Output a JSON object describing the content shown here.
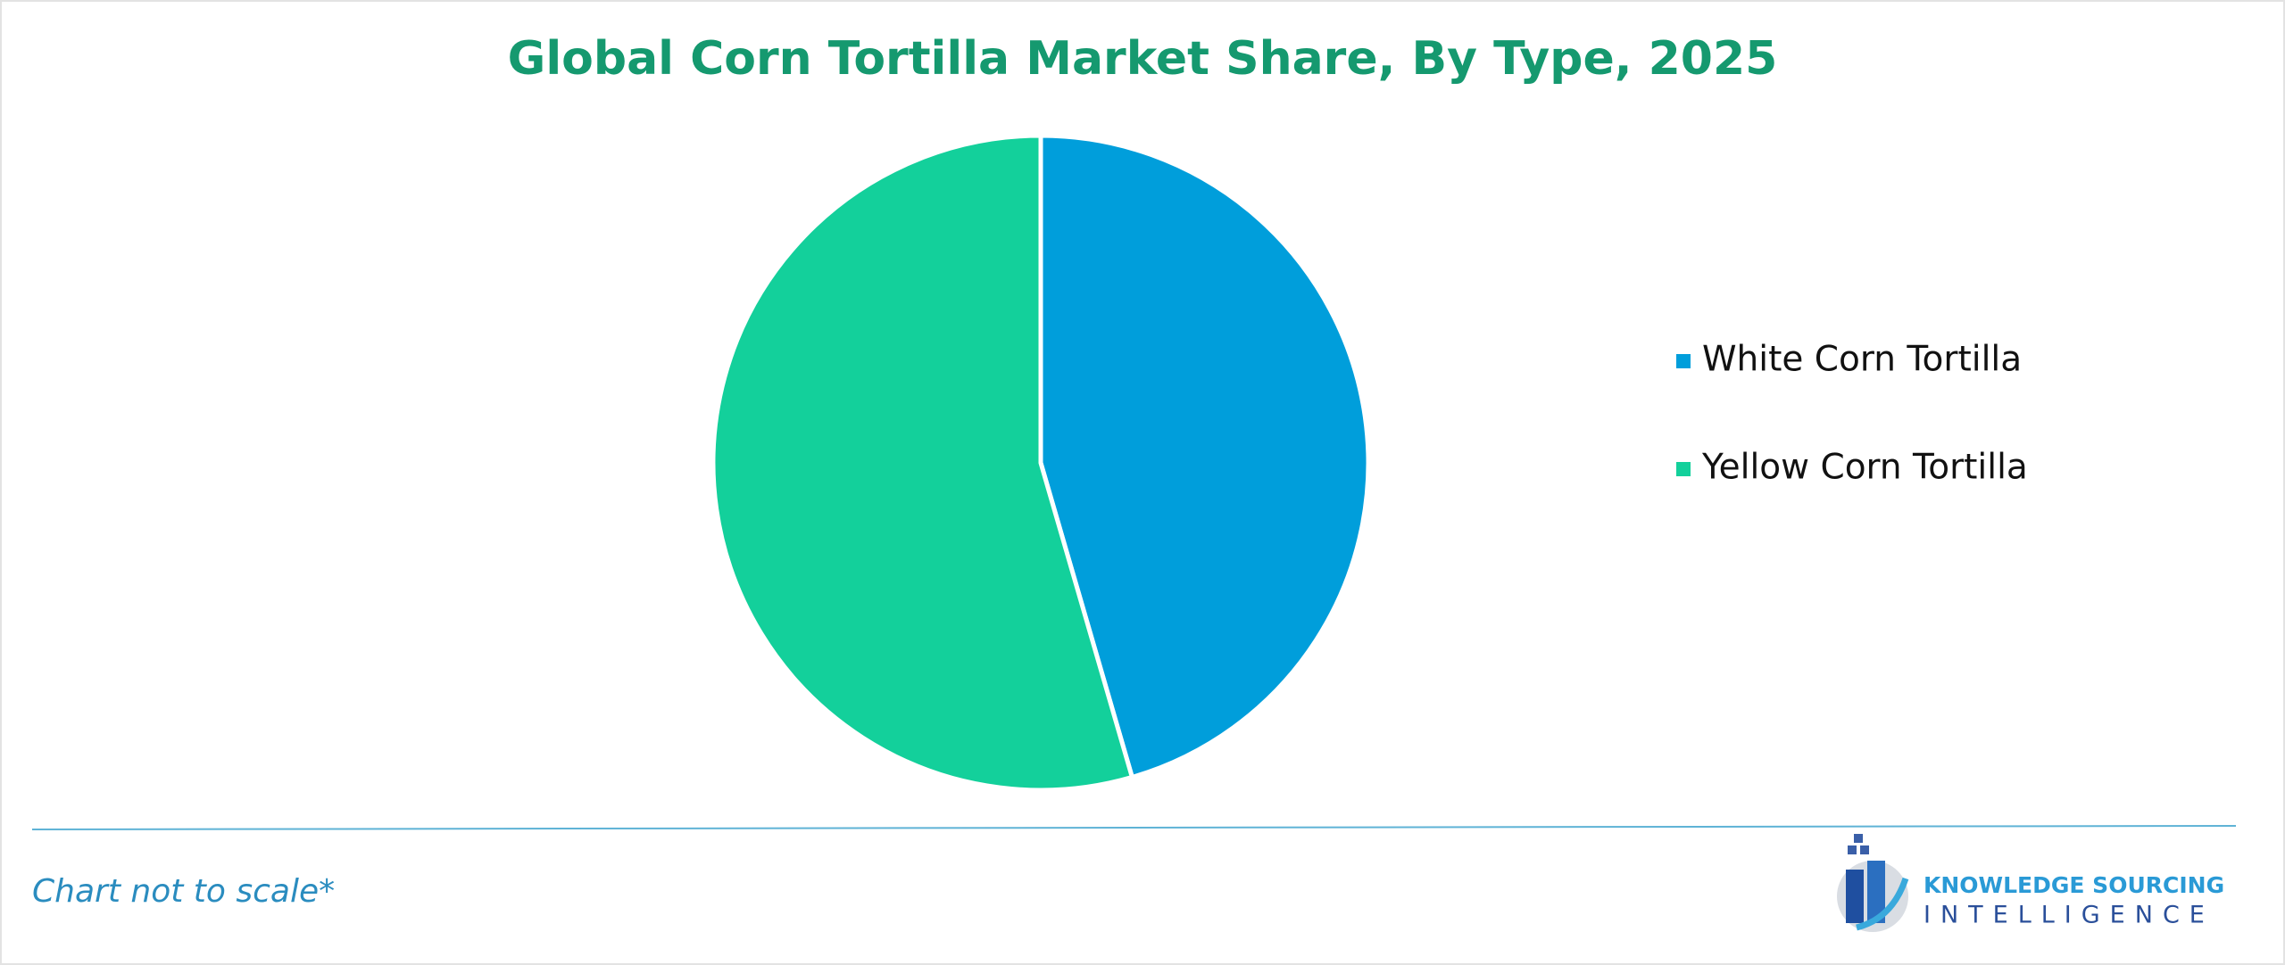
{
  "chart_data": {
    "type": "pie",
    "title": "Global Corn Tortilla Market Share, By Type, 2025",
    "categories": [
      "White Corn Tortilla",
      "Yellow Corn Tortilla"
    ],
    "values": [
      45.5,
      54.5
    ],
    "colors": [
      "#009edb",
      "#13d09b"
    ]
  },
  "note": "Chart not to scale*",
  "logo": {
    "line1": "KNOWLEDGE SOURCING",
    "line2": "INTELLIGENCE"
  }
}
